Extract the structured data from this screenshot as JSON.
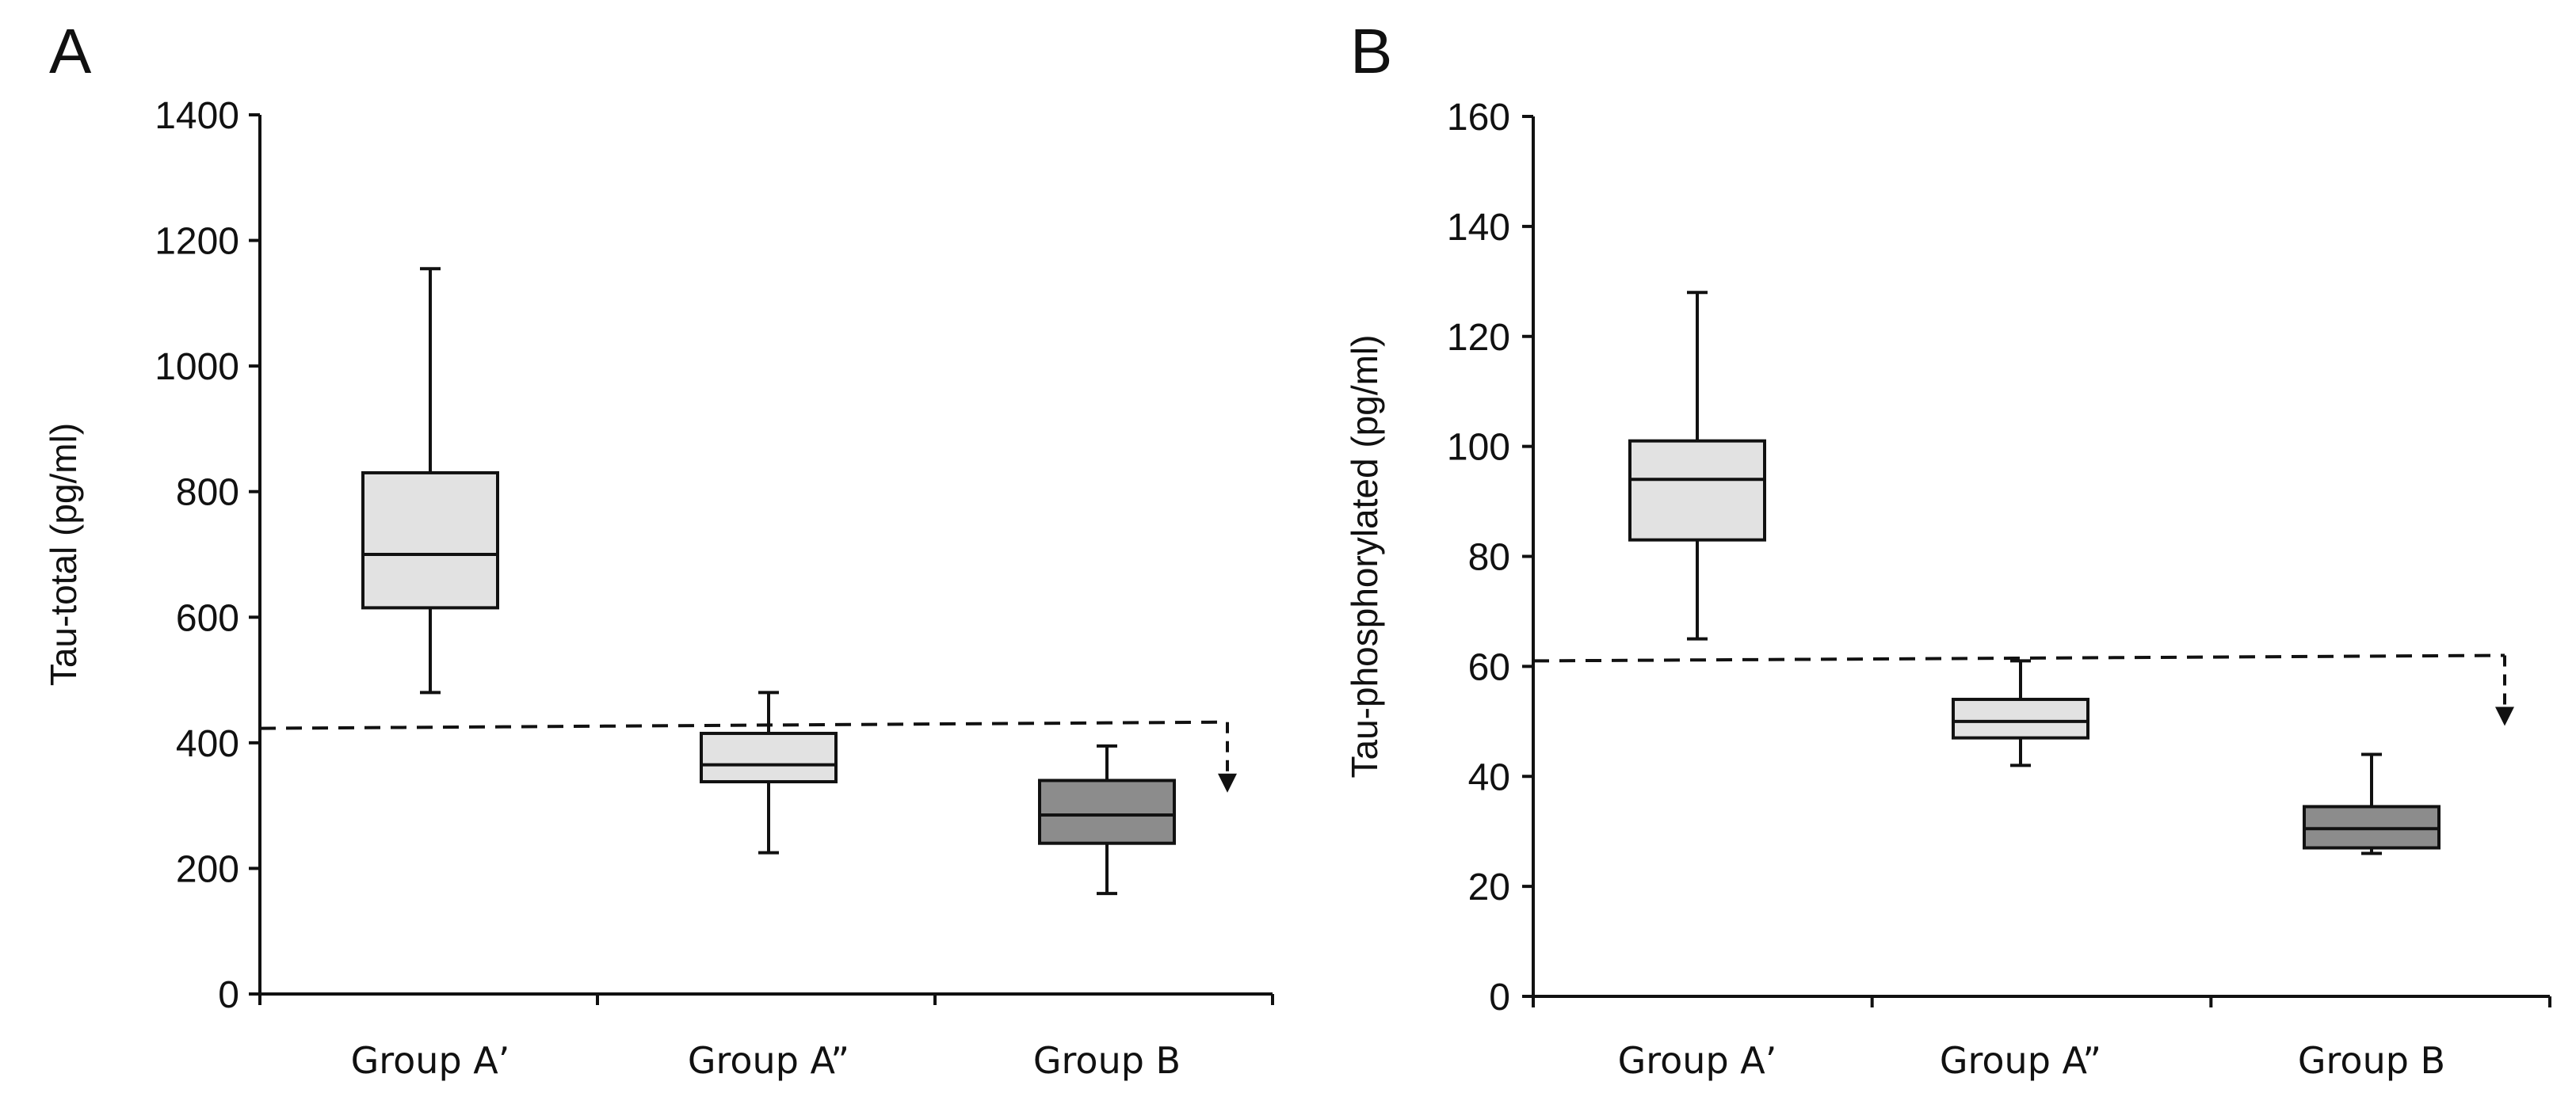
{
  "figure": {
    "panels": [
      "A",
      "B"
    ]
  },
  "chart_data": [
    {
      "panel": "A",
      "type": "box",
      "ylabel": "Tau-total (pg/ml)",
      "xlabel": "",
      "ylim": [
        0,
        1400
      ],
      "yticks": [
        0,
        200,
        400,
        600,
        800,
        1000,
        1200,
        1400
      ],
      "categories": [
        "Group A’",
        "Group A”",
        "Group B"
      ],
      "boxes": [
        {
          "category": "Group A’",
          "min": 480,
          "q1": 615,
          "median": 700,
          "q3": 830,
          "max": 1155,
          "fill": "#e2e2e2"
        },
        {
          "category": "Group A”",
          "min": 225,
          "q1": 338,
          "median": 365,
          "q3": 415,
          "max": 480,
          "fill": "#e2e2e2"
        },
        {
          "category": "Group B",
          "min": 160,
          "q1": 240,
          "median": 285,
          "q3": 340,
          "max": 395,
          "fill": "#8c8c8c"
        }
      ],
      "reference_line": {
        "style": "dashed",
        "y_start": 423,
        "y_end": 433,
        "arrow": "down"
      }
    },
    {
      "panel": "B",
      "type": "box",
      "ylabel": "Tau-phosphorylated (pg/ml)",
      "xlabel": "",
      "ylim": [
        0,
        160
      ],
      "yticks": [
        0,
        20,
        40,
        60,
        80,
        100,
        120,
        140,
        160
      ],
      "categories": [
        "Group A’",
        "Group A”",
        "Group B"
      ],
      "boxes": [
        {
          "category": "Group A’",
          "min": 65,
          "q1": 83,
          "median": 94,
          "q3": 101,
          "max": 128,
          "fill": "#e2e2e2"
        },
        {
          "category": "Group A”",
          "min": 42,
          "q1": 47,
          "median": 50,
          "q3": 54,
          "max": 61,
          "fill": "#e2e2e2"
        },
        {
          "category": "Group B",
          "min": 26,
          "q1": 27,
          "median": 30.5,
          "q3": 34.5,
          "max": 44,
          "fill": "#8c8c8c"
        }
      ],
      "reference_line": {
        "style": "dashed",
        "y_start": 61,
        "y_end": 62,
        "arrow": "down"
      }
    }
  ]
}
